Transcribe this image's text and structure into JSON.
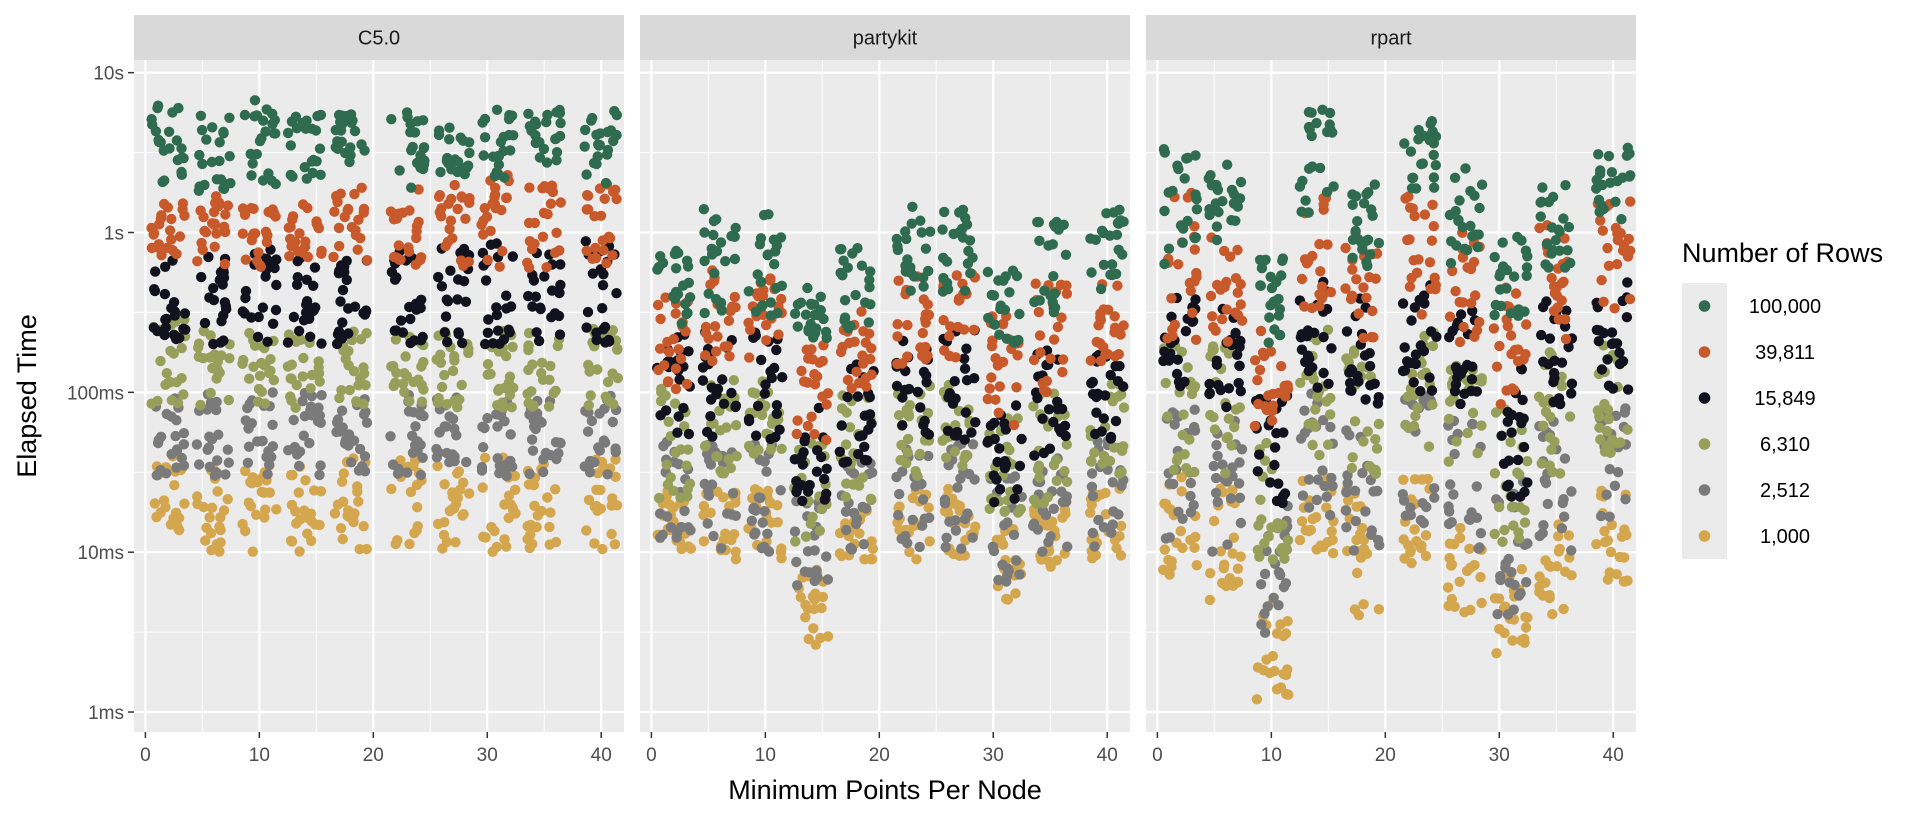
{
  "chart_data": {
    "type": "scatter",
    "facets": [
      {
        "label": "C5.0",
        "key": "C5"
      },
      {
        "label": "partykit",
        "key": "partykit"
      },
      {
        "label": "rpart",
        "key": "rpart"
      }
    ],
    "xlabel": "Minimum Points Per Node",
    "ylabel": "Elapsed Time",
    "x_ticks": [
      0,
      10,
      20,
      30,
      40
    ],
    "xlim": [
      -1,
      42
    ],
    "y_scale": "log10",
    "ylim_seconds": [
      0.00075,
      12
    ],
    "y_ticks": [
      {
        "value": 0.001,
        "label": "1ms"
      },
      {
        "value": 0.01,
        "label": "10ms"
      },
      {
        "value": 0.1,
        "label": "100ms"
      },
      {
        "value": 1,
        "label": "1s"
      },
      {
        "value": 10,
        "label": "10s"
      }
    ],
    "grid": true,
    "legend": {
      "title": "Number of Rows",
      "position": "right",
      "items": [
        {
          "label": "100,000",
          "color": "#2F6B4F"
        },
        {
          "label": "39,811",
          "color": "#C8592B"
        },
        {
          "label": "15,849",
          "color": "#12121F"
        },
        {
          "label": "6,310",
          "color": "#96A05A"
        },
        {
          "label": "2,512",
          "color": "#7A7A7A"
        },
        {
          "label": "1,000",
          "color": "#D4A64E"
        }
      ]
    },
    "x_groups": [
      2,
      6,
      10,
      14,
      18,
      23,
      27,
      31,
      35,
      40
    ],
    "series_ranges_seconds": {
      "C5": {
        "100,000": [
          [
            2,
            6.5
          ],
          [
            1.8,
            5.5
          ],
          [
            2,
            7
          ],
          [
            2,
            5.5
          ],
          [
            2.5,
            5.5
          ],
          [
            1.9,
            6
          ],
          [
            2.2,
            5.5
          ],
          [
            2,
            6
          ],
          [
            2.5,
            6
          ],
          [
            2,
            6
          ]
        ],
        "39,811": [
          [
            0.6,
            1.6
          ],
          [
            0.6,
            1.8
          ],
          [
            0.6,
            1.6
          ],
          [
            0.6,
            1.5
          ],
          [
            0.6,
            2
          ],
          [
            0.6,
            2.2
          ],
          [
            0.6,
            2
          ],
          [
            0.6,
            2.3
          ],
          [
            0.6,
            2
          ],
          [
            0.6,
            2
          ]
        ],
        "15,849": [
          [
            0.2,
            0.7
          ],
          [
            0.2,
            0.8
          ],
          [
            0.2,
            0.9
          ],
          [
            0.2,
            0.8
          ],
          [
            0.2,
            0.8
          ],
          [
            0.2,
            0.8
          ],
          [
            0.2,
            0.8
          ],
          [
            0.2,
            0.9
          ],
          [
            0.2,
            0.8
          ],
          [
            0.2,
            0.9
          ]
        ],
        "6,310": [
          [
            0.08,
            0.3
          ],
          [
            0.08,
            0.25
          ],
          [
            0.08,
            0.25
          ],
          [
            0.08,
            0.25
          ],
          [
            0.08,
            0.25
          ],
          [
            0.08,
            0.25
          ],
          [
            0.08,
            0.25
          ],
          [
            0.08,
            0.25
          ],
          [
            0.08,
            0.25
          ],
          [
            0.08,
            0.25
          ]
        ],
        "2,512": [
          [
            0.03,
            0.1
          ],
          [
            0.03,
            0.1
          ],
          [
            0.03,
            0.1
          ],
          [
            0.03,
            0.1
          ],
          [
            0.03,
            0.1
          ],
          [
            0.03,
            0.1
          ],
          [
            0.03,
            0.1
          ],
          [
            0.03,
            0.1
          ],
          [
            0.03,
            0.1
          ],
          [
            0.03,
            0.1
          ]
        ],
        "1,000": [
          [
            0.011,
            0.04
          ],
          [
            0.01,
            0.035
          ],
          [
            0.01,
            0.035
          ],
          [
            0.01,
            0.035
          ],
          [
            0.01,
            0.04
          ],
          [
            0.01,
            0.04
          ],
          [
            0.01,
            0.035
          ],
          [
            0.01,
            0.04
          ],
          [
            0.01,
            0.04
          ],
          [
            0.01,
            0.04
          ]
        ]
      },
      "partykit": {
        "100,000": [
          [
            0.25,
            0.8
          ],
          [
            0.3,
            1.4
          ],
          [
            0.3,
            1.4
          ],
          [
            0.2,
            0.45
          ],
          [
            0.25,
            0.8
          ],
          [
            0.4,
            1.6
          ],
          [
            0.35,
            1.4
          ],
          [
            0.2,
            0.6
          ],
          [
            0.3,
            1.3
          ],
          [
            0.4,
            1.5
          ]
        ],
        "39,811": [
          [
            0.1,
            0.4
          ],
          [
            0.15,
            0.6
          ],
          [
            0.15,
            0.55
          ],
          [
            0.05,
            0.2
          ],
          [
            0.1,
            0.35
          ],
          [
            0.15,
            0.6
          ],
          [
            0.15,
            0.6
          ],
          [
            0.06,
            0.3
          ],
          [
            0.1,
            0.5
          ],
          [
            0.15,
            0.5
          ]
        ],
        "15,849": [
          [
            0.05,
            0.25
          ],
          [
            0.05,
            0.25
          ],
          [
            0.05,
            0.25
          ],
          [
            0.02,
            0.08
          ],
          [
            0.03,
            0.15
          ],
          [
            0.05,
            0.25
          ],
          [
            0.05,
            0.25
          ],
          [
            0.02,
            0.12
          ],
          [
            0.04,
            0.2
          ],
          [
            0.05,
            0.2
          ]
        ],
        "6,310": [
          [
            0.02,
            0.12
          ],
          [
            0.03,
            0.12
          ],
          [
            0.03,
            0.12
          ],
          [
            0.01,
            0.05
          ],
          [
            0.02,
            0.1
          ],
          [
            0.03,
            0.12
          ],
          [
            0.03,
            0.12
          ],
          [
            0.015,
            0.08
          ],
          [
            0.02,
            0.1
          ],
          [
            0.03,
            0.12
          ]
        ],
        "2,512": [
          [
            0.01,
            0.05
          ],
          [
            0.01,
            0.05
          ],
          [
            0.01,
            0.05
          ],
          [
            0.005,
            0.025
          ],
          [
            0.01,
            0.04
          ],
          [
            0.01,
            0.05
          ],
          [
            0.01,
            0.05
          ],
          [
            0.006,
            0.03
          ],
          [
            0.01,
            0.04
          ],
          [
            0.01,
            0.05
          ]
        ],
        "1,000": [
          [
            0.01,
            0.025
          ],
          [
            0.009,
            0.025
          ],
          [
            0.009,
            0.025
          ],
          [
            0.0025,
            0.008
          ],
          [
            0.009,
            0.022
          ],
          [
            0.009,
            0.025
          ],
          [
            0.009,
            0.025
          ],
          [
            0.005,
            0.015
          ],
          [
            0.008,
            0.02
          ],
          [
            0.009,
            0.025
          ]
        ]
      },
      "rpart": {
        "100,000": [
          [
            0.6,
            4
          ],
          [
            0.8,
            2.7
          ],
          [
            0.2,
            0.7
          ],
          [
            1.2,
            6
          ],
          [
            0.6,
            2.2
          ],
          [
            1.8,
            5
          ],
          [
            0.6,
            2.6
          ],
          [
            0.3,
            1
          ],
          [
            0.6,
            2.1
          ],
          [
            1.2,
            3.5
          ]
        ],
        "39,811": [
          [
            0.2,
            1.8
          ],
          [
            0.2,
            1
          ],
          [
            0.06,
            0.25
          ],
          [
            0.3,
            1.8
          ],
          [
            0.2,
            1
          ],
          [
            0.3,
            2
          ],
          [
            0.2,
            1.1
          ],
          [
            0.08,
            0.5
          ],
          [
            0.2,
            1.2
          ],
          [
            0.3,
            1.6
          ]
        ],
        "15,849": [
          [
            0.1,
            0.5
          ],
          [
            0.08,
            0.4
          ],
          [
            0.02,
            0.1
          ],
          [
            0.1,
            0.5
          ],
          [
            0.08,
            0.4
          ],
          [
            0.1,
            0.5
          ],
          [
            0.08,
            0.4
          ],
          [
            0.02,
            0.15
          ],
          [
            0.08,
            0.4
          ],
          [
            0.1,
            0.5
          ]
        ],
        "6,310": [
          [
            0.03,
            0.2
          ],
          [
            0.03,
            0.2
          ],
          [
            0.008,
            0.05
          ],
          [
            0.04,
            0.25
          ],
          [
            0.03,
            0.2
          ],
          [
            0.04,
            0.25
          ],
          [
            0.03,
            0.2
          ],
          [
            0.01,
            0.08
          ],
          [
            0.03,
            0.2
          ],
          [
            0.04,
            0.2
          ]
        ],
        "2,512": [
          [
            0.01,
            0.08
          ],
          [
            0.01,
            0.07
          ],
          [
            0.003,
            0.02
          ],
          [
            0.015,
            0.1
          ],
          [
            0.01,
            0.07
          ],
          [
            0.015,
            0.1
          ],
          [
            0.01,
            0.07
          ],
          [
            0.004,
            0.03
          ],
          [
            0.01,
            0.07
          ],
          [
            0.015,
            0.08
          ]
        ],
        "1,000": [
          [
            0.007,
            0.03
          ],
          [
            0.005,
            0.025
          ],
          [
            0.0012,
            0.005
          ],
          [
            0.009,
            0.03
          ],
          [
            0.004,
            0.025
          ],
          [
            0.008,
            0.03
          ],
          [
            0.004,
            0.015
          ],
          [
            0.002,
            0.008
          ],
          [
            0.004,
            0.015
          ],
          [
            0.006,
            0.025
          ]
        ]
      }
    }
  }
}
